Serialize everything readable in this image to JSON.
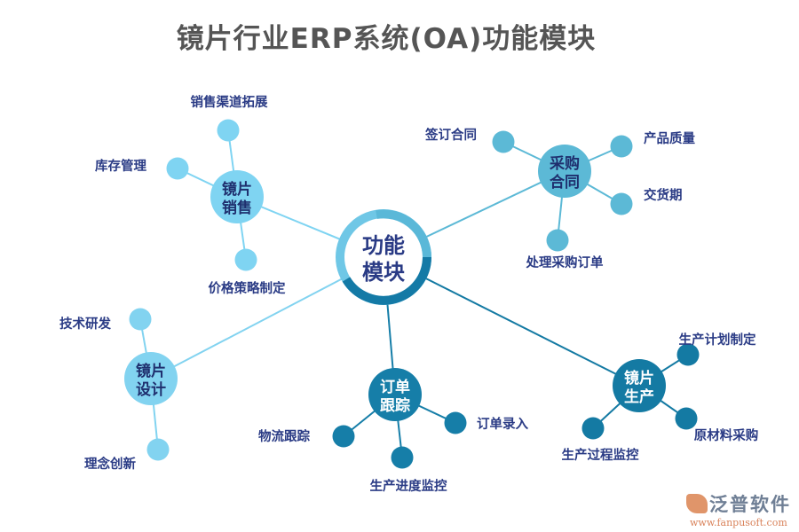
{
  "title": "镜片行业ERP系统(OA)功能模块",
  "center": {
    "line1": "功能",
    "line2": "模块",
    "ring_colors": [
      "#6fc7e6",
      "#147aa6"
    ]
  },
  "hubs": [
    {
      "id": "sales",
      "line1": "镜片",
      "line2": "销售",
      "color": "#7fd4f2",
      "leaves": [
        "销售渠道拓展",
        "库存管理",
        "价格策略制定"
      ]
    },
    {
      "id": "purchase",
      "line1": "采购",
      "line2": "合同",
      "color": "#5cb9d6",
      "leaves": [
        "签订合同",
        "产品质量",
        "交货期",
        "处理采购订单"
      ]
    },
    {
      "id": "design",
      "line1": "镜片",
      "line2": "设计",
      "color": "#82d3f0",
      "leaves": [
        "技术研发",
        "理念创新"
      ]
    },
    {
      "id": "order",
      "line1": "订单",
      "line2": "跟踪",
      "color": "#167ea8",
      "leaves": [
        "物流跟踪",
        "订单录入",
        "生产进度监控"
      ]
    },
    {
      "id": "production",
      "line1": "镜片",
      "line2": "生产",
      "color": "#147aa3",
      "leaves": [
        "生产计划制定",
        "原材料采购",
        "生产过程监控"
      ]
    }
  ],
  "logo": {
    "name": "泛普软件",
    "url": "www.fanpusoft.com"
  }
}
